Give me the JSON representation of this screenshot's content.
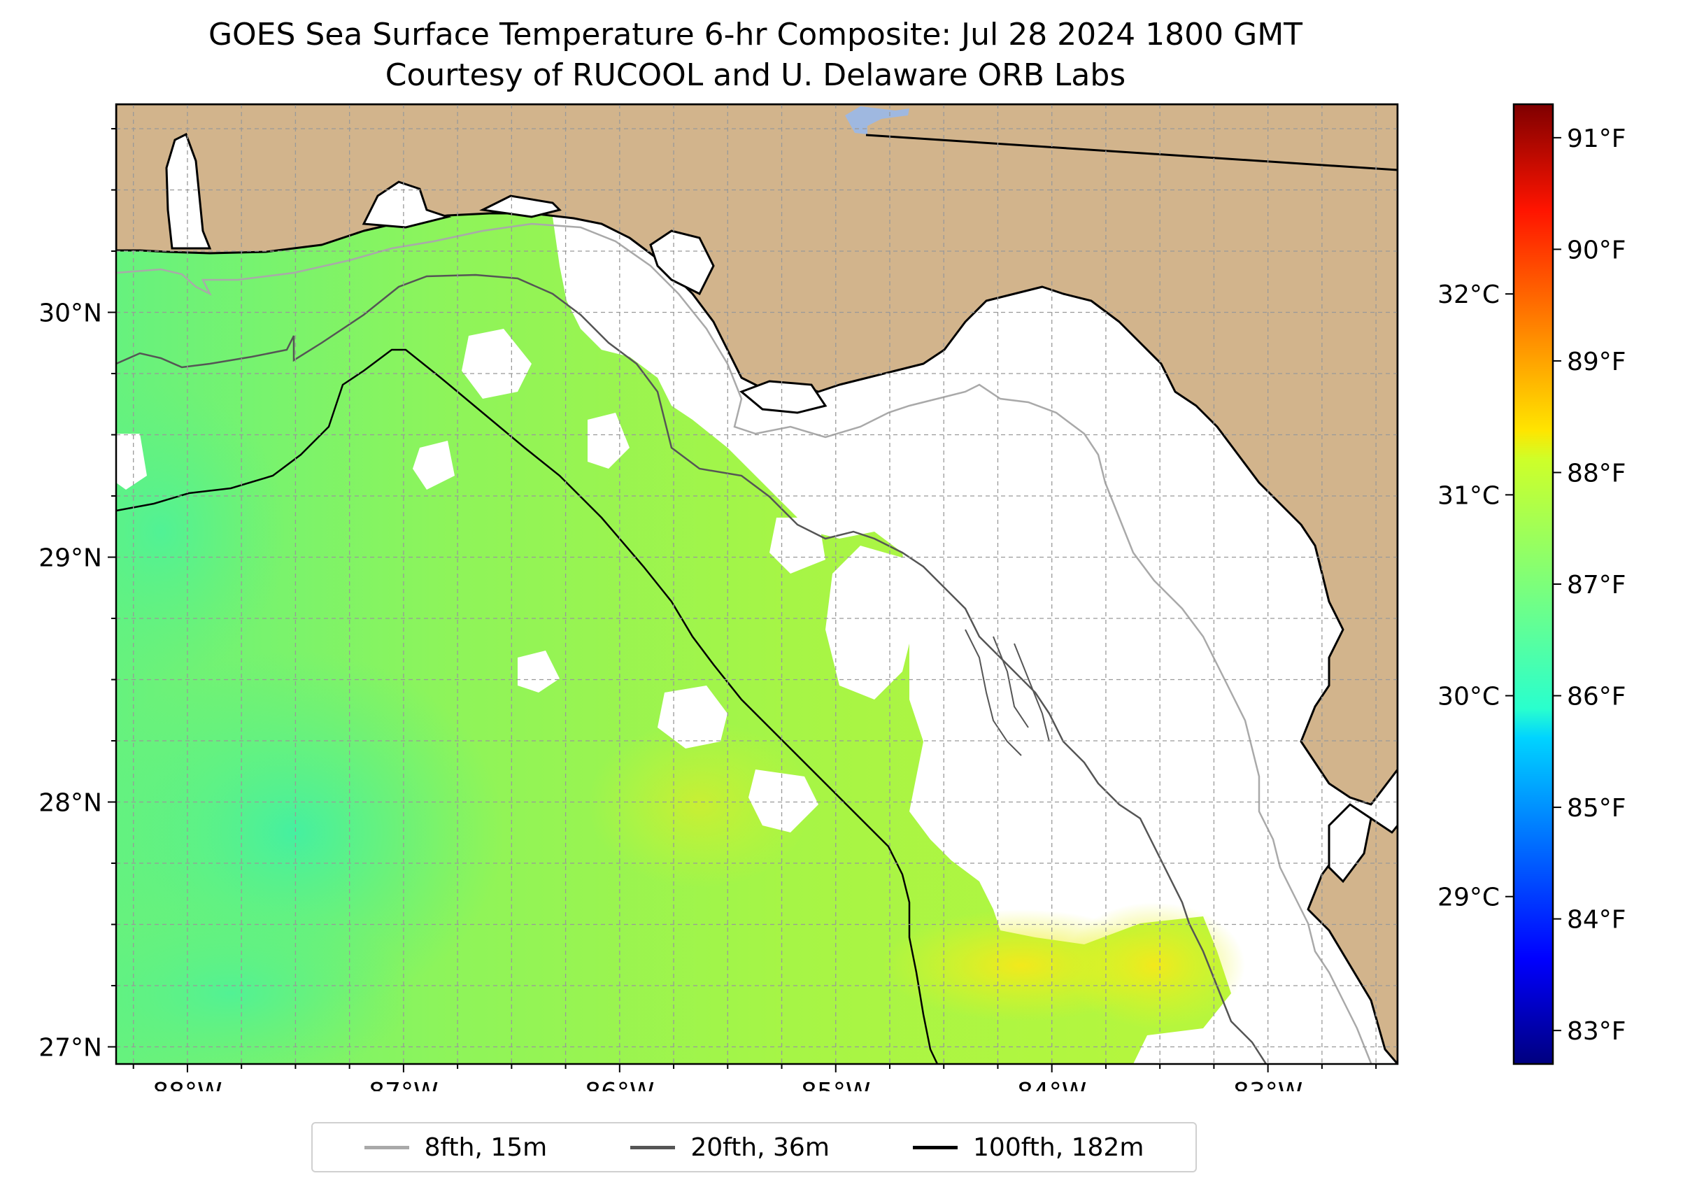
{
  "title": {
    "line1": "GOES Sea Surface Temperature 6-hr Composite: Jul 28 2024 1800 GMT",
    "line2": "Courtesy of RUCOOL and U. Delaware ORB Labs"
  },
  "map": {
    "extent": {
      "lon_min": -88.33,
      "lon_max": -82.4,
      "lat_min": 26.93,
      "lat_max": 30.85
    },
    "land_color": "#d2b48c",
    "water_color": "#9fb8e0",
    "no_data_color": "#ffffff",
    "lon_ticks": [
      {
        "value": -88,
        "label": "88°W"
      },
      {
        "value": -87,
        "label": "87°W"
      },
      {
        "value": -86,
        "label": "86°W"
      },
      {
        "value": -85,
        "label": "85°W"
      },
      {
        "value": -84,
        "label": "84°W"
      },
      {
        "value": -83,
        "label": "83°W"
      }
    ],
    "lat_ticks": [
      {
        "value": 30,
        "label": "30°N"
      },
      {
        "value": 29,
        "label": "29°N"
      },
      {
        "value": 28,
        "label": "28°N"
      },
      {
        "value": 27,
        "label": "27°N"
      }
    ]
  },
  "colorbar": {
    "colormap": "jet",
    "range_f": [
      82.7,
      91.3
    ],
    "fahrenheit_ticks": [
      {
        "value": 83,
        "label": "83°F"
      },
      {
        "value": 84,
        "label": "84°F"
      },
      {
        "value": 85,
        "label": "85°F"
      },
      {
        "value": 86,
        "label": "86°F"
      },
      {
        "value": 87,
        "label": "87°F"
      },
      {
        "value": 88,
        "label": "88°F"
      },
      {
        "value": 89,
        "label": "89°F"
      },
      {
        "value": 90,
        "label": "90°F"
      },
      {
        "value": 91,
        "label": "91°F"
      }
    ],
    "celsius_ticks": [
      {
        "value": 29,
        "label": "29°C"
      },
      {
        "value": 30,
        "label": "30°C"
      },
      {
        "value": 31,
        "label": "31°C"
      },
      {
        "value": 32,
        "label": "32°C"
      }
    ]
  },
  "legend": {
    "items": [
      {
        "label": "8fth, 15m",
        "color": "#a9a9a9"
      },
      {
        "label": "20fth, 36m",
        "color": "#555555"
      },
      {
        "label": "100fth, 182m",
        "color": "#000000"
      }
    ]
  }
}
